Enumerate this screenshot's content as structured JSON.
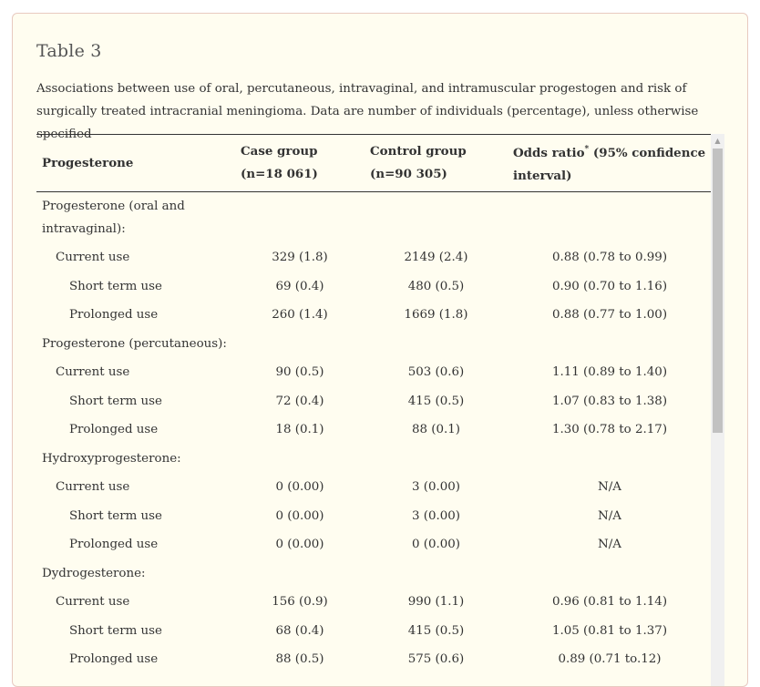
{
  "title": "Table 3",
  "caption": "Associations between use of oral, percutaneous, intravaginal, and intramuscular progestogen and risk of surgically treated intracranial meningioma. Data are number of individuals (percentage), unless otherwise specified",
  "columns": {
    "c0": "Progesterone",
    "c1": "Case group (n=18 061)",
    "c2": "Control group (n=90 305)",
    "c3_a": "Odds ratio",
    "c3_sup": "*",
    "c3_b": " (95% confidence interval)"
  },
  "rows": [
    {
      "label": "Progesterone (oral and intravaginal):",
      "case": "",
      "control": "",
      "or": ""
    },
    {
      "label": "Current use",
      "case": "329 (1.8)",
      "control": "2149 (2.4)",
      "or": "0.88 (0.78 to 0.99)"
    },
    {
      "label": "Short term use",
      "case": "69 (0.4)",
      "control": "480 (0.5)",
      "or": "0.90 (0.70 to 1.16)"
    },
    {
      "label": "Prolonged use",
      "case": "260 (1.4)",
      "control": "1669 (1.8)",
      "or": "0.88 (0.77 to 1.00)"
    },
    {
      "label": "Progesterone (percutaneous):",
      "case": "",
      "control": "",
      "or": ""
    },
    {
      "label": "Current use",
      "case": "90 (0.5)",
      "control": "503 (0.6)",
      "or": "1.11 (0.89 to 1.40)"
    },
    {
      "label": "Short term use",
      "case": "72 (0.4)",
      "control": "415 (0.5)",
      "or": "1.07 (0.83 to 1.38)"
    },
    {
      "label": "Prolonged use",
      "case": "18 (0.1)",
      "control": "88 (0.1)",
      "or": "1.30 (0.78 to 2.17)"
    },
    {
      "label": "Hydroxyprogesterone:",
      "case": "",
      "control": "",
      "or": ""
    },
    {
      "label": "Current use",
      "case": "0 (0.00)",
      "control": "3 (0.00)",
      "or": "N/A"
    },
    {
      "label": "Short term use",
      "case": "0 (0.00)",
      "control": "3 (0.00)",
      "or": "N/A"
    },
    {
      "label": "Prolonged use",
      "case": "0 (0.00)",
      "control": "0 (0.00)",
      "or": "N/A"
    },
    {
      "label": "Dydrogesterone:",
      "case": "",
      "control": "",
      "or": ""
    },
    {
      "label": "Current use",
      "case": "156 (0.9)",
      "control": "990 (1.1)",
      "or": "0.96 (0.81 to 1.14)"
    },
    {
      "label": "Short term use",
      "case": "68 (0.4)",
      "control": "415 (0.5)",
      "or": "1.05 (0.81 to 1.37)"
    },
    {
      "label": "Prolonged use",
      "case": "88 (0.5)",
      "control": "575 (0.6)",
      "or": "0.89 (0.71 to.12)"
    }
  ],
  "scrollbar": {
    "up_arrow": "▲"
  }
}
